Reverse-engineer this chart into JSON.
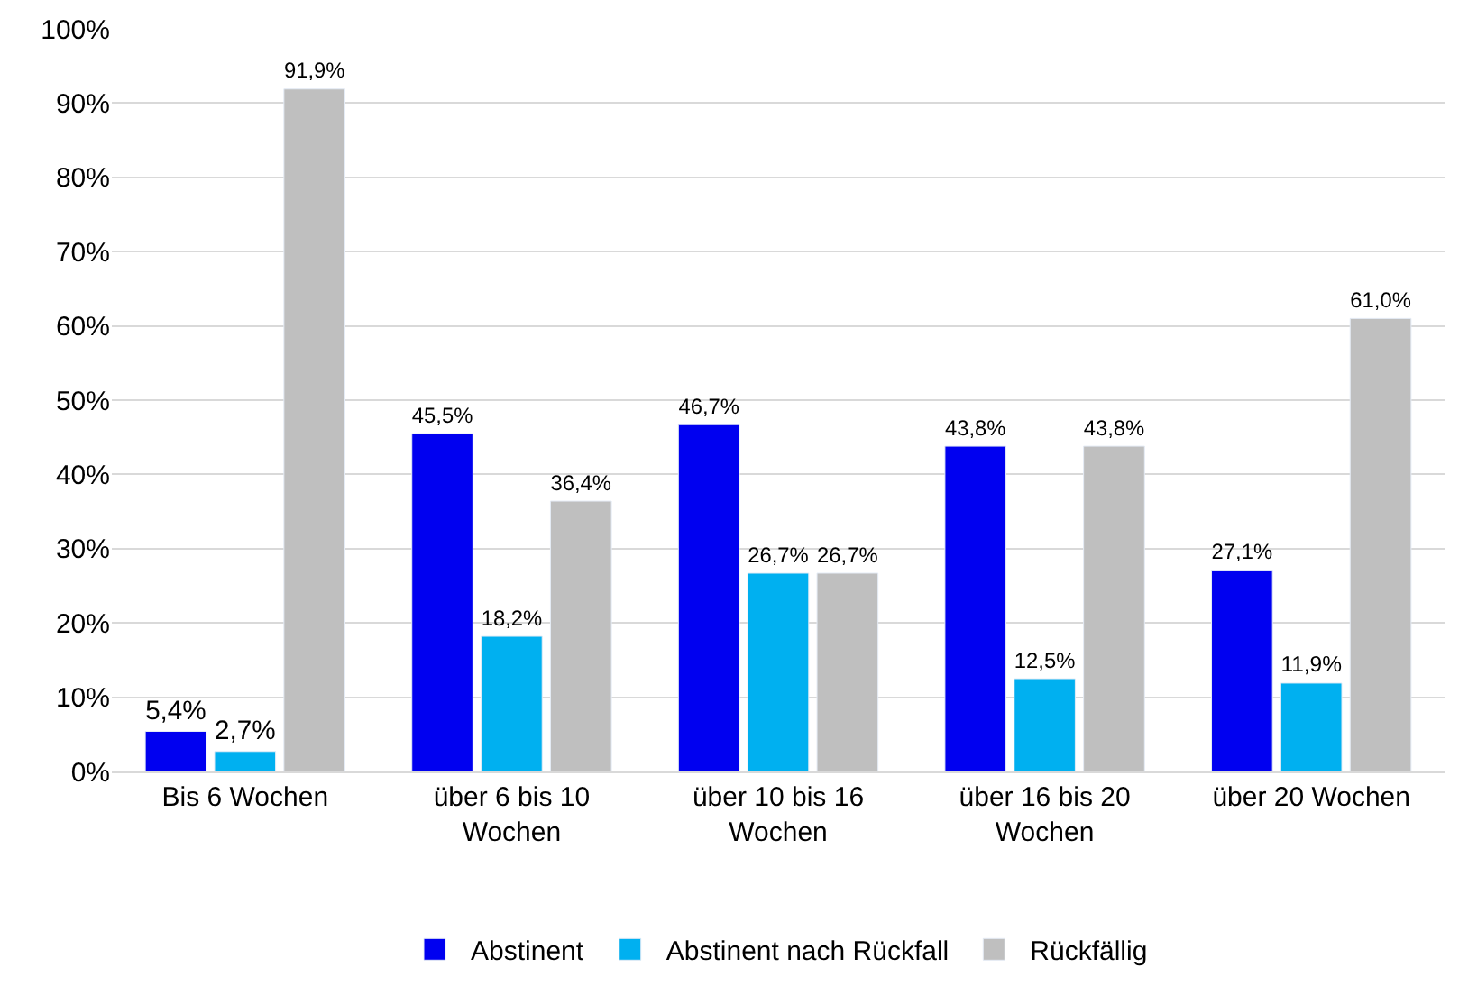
{
  "chart_data": {
    "type": "bar",
    "categories": [
      "Bis 6 Wochen",
      "über 6 bis 10 Wochen",
      "über 10 bis 16 Wochen",
      "über 16 bis 20 Wochen",
      "über 20 Wochen"
    ],
    "series": [
      {
        "name": "Abstinent",
        "color": "#0000f0",
        "values": [
          5.4,
          45.5,
          46.7,
          43.8,
          27.1
        ],
        "value_labels": [
          "5,4%",
          "45,5%",
          "46,7%",
          "43,8%",
          "27,1%"
        ]
      },
      {
        "name": "Abstinent nach Rückfall",
        "color": "#00b0f0",
        "values": [
          2.7,
          18.2,
          26.7,
          12.5,
          11.9
        ],
        "value_labels": [
          "2,7%",
          "18,2%",
          "26,7%",
          "12,5%",
          "11,9%"
        ]
      },
      {
        "name": "Rückfällig",
        "color": "#bfbfbf",
        "values": [
          91.9,
          36.4,
          26.7,
          43.8,
          61.0
        ],
        "value_labels": [
          "91,9%",
          "36,4%",
          "26,7%",
          "43,8%",
          "61,0%"
        ]
      }
    ],
    "ylim": [
      0,
      100
    ],
    "yticks": [
      {
        "value": 0,
        "label": "0%"
      },
      {
        "value": 10,
        "label": "10%"
      },
      {
        "value": 20,
        "label": "20%"
      },
      {
        "value": 30,
        "label": "30%"
      },
      {
        "value": 40,
        "label": "40%"
      },
      {
        "value": 50,
        "label": "50%"
      },
      {
        "value": 60,
        "label": "60%"
      },
      {
        "value": 70,
        "label": "70%"
      },
      {
        "value": 80,
        "label": "80%"
      },
      {
        "value": 90,
        "label": "90%"
      },
      {
        "value": 100,
        "label": "100%"
      }
    ],
    "grid": "y",
    "legend": "bottom"
  }
}
